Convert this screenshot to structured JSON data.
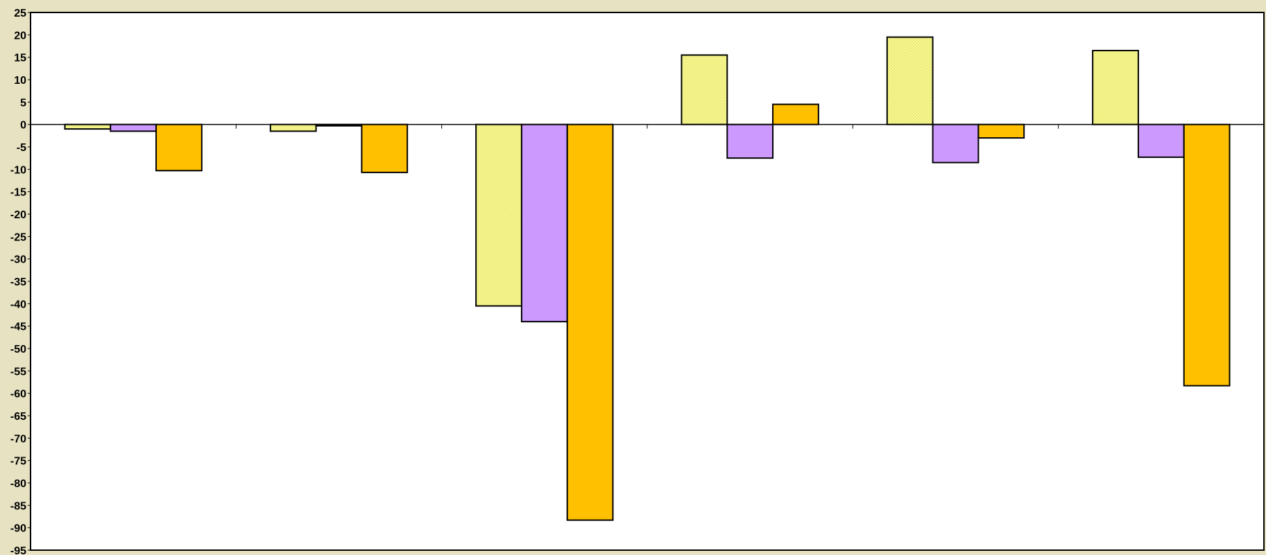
{
  "chart_data": {
    "type": "bar",
    "title": "",
    "xlabel": "",
    "ylabel": "",
    "categories": [
      "",
      "",
      "",
      "",
      "",
      ""
    ],
    "ylim": [
      -95,
      25
    ],
    "ytick_step": 5,
    "grid": false,
    "legend": "none",
    "series": [
      {
        "fill": "#ffff99",
        "pattern": "diagonal-hatch",
        "values": [
          -1,
          -1.5,
          -40.5,
          15.5,
          19.5,
          16.5
        ]
      },
      {
        "fill": "#cc99ff",
        "pattern": "solid",
        "values": [
          -1.5,
          -0.3,
          -44,
          -7.5,
          -8.5,
          -7.3
        ]
      },
      {
        "fill": "#ffc000",
        "pattern": "solid",
        "values": [
          -10.3,
          -10.7,
          -88.3,
          4.5,
          -3,
          -58.3
        ]
      }
    ]
  },
  "colors": {
    "background": "#e6e2c2",
    "plot_area": "#ffffff",
    "axis": "#000000"
  }
}
